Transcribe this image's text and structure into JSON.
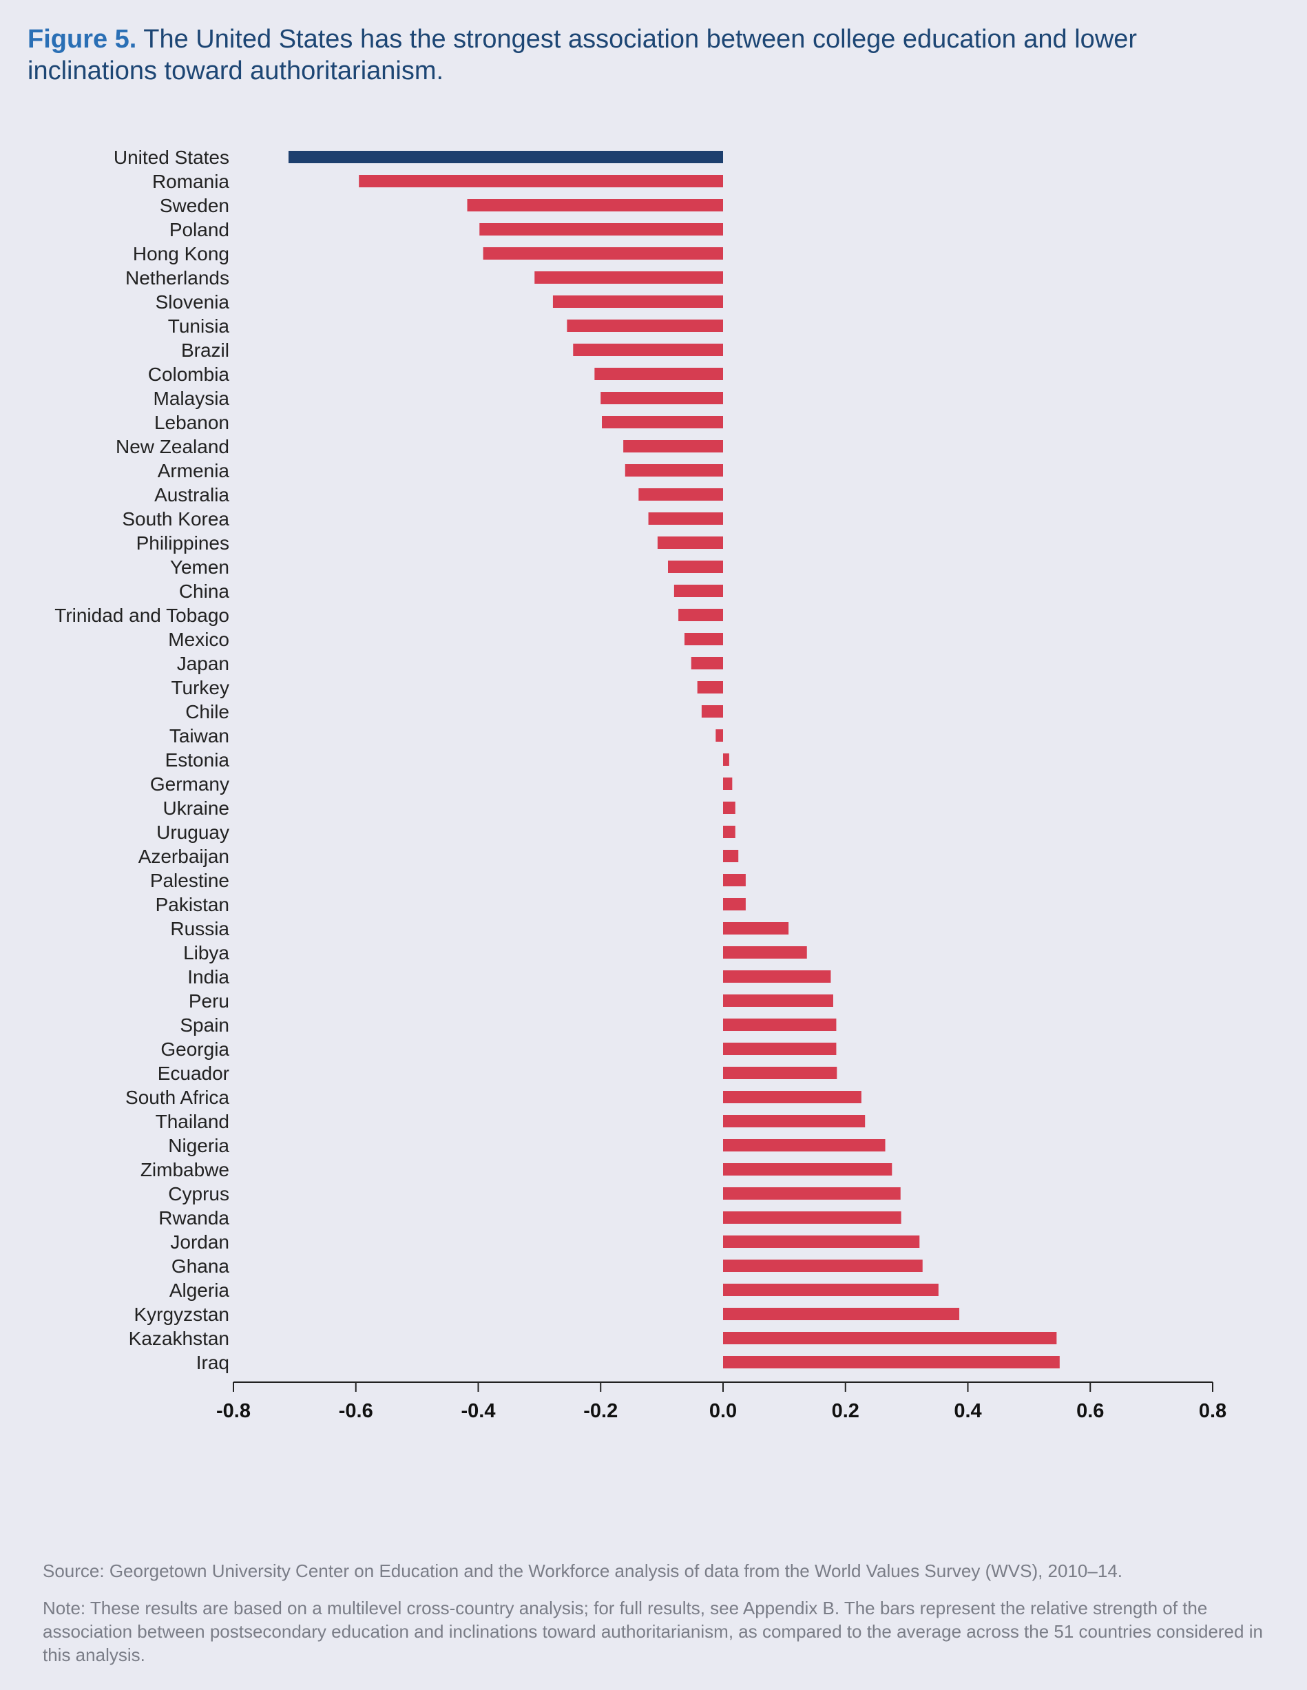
{
  "title": {
    "label": "Figure 5.",
    "text": "The United States has the strongest association between college education and lower inclinations toward authoritarianism."
  },
  "source": "Source: Georgetown University Center on Education and the Workforce analysis of data from the World Values Survey (WVS), 2010–14.",
  "note": "Note: These results are based on a multilevel cross-country analysis; for full results, see Appendix B. The bars represent the relative strength of the association between postsecondary education and inclinations toward authoritarianism, as compared to the average across the 51 countries considered in this analysis.",
  "colors": {
    "highlight": "#1d3f6e",
    "bar": "#d63d51",
    "axis": "#222222",
    "background": "#e9eaf2"
  },
  "chart_data": {
    "type": "bar",
    "orientation": "horizontal",
    "title": "",
    "xlabel": "",
    "ylabel": "",
    "xlim": [
      -0.8,
      0.8
    ],
    "xticks": [
      "-0.8",
      "-0.6",
      "-0.4",
      "-0.2",
      "0.0",
      "0.2",
      "0.4",
      "0.6",
      "0.8"
    ],
    "grid": false,
    "legend": "none",
    "highlight_category": "United States",
    "categories": [
      "United States",
      "Romania",
      "Sweden",
      "Poland",
      "Hong Kong",
      "Netherlands",
      "Slovenia",
      "Tunisia",
      "Brazil",
      "Colombia",
      "Malaysia",
      "Lebanon",
      "New Zealand",
      "Armenia",
      "Australia",
      "South Korea",
      "Philippines",
      "Yemen",
      "China",
      "Trinidad and Tobago",
      "Mexico",
      "Japan",
      "Turkey",
      "Chile",
      "Taiwan",
      "Estonia",
      "Germany",
      "Ukraine",
      "Uruguay",
      "Azerbaijan",
      "Palestine",
      "Pakistan",
      "Russia",
      "Libya",
      "India",
      "Peru",
      "Spain",
      "Georgia",
      "Ecuador",
      "South Africa",
      "Thailand",
      "Nigeria",
      "Zimbabwe",
      "Cyprus",
      "Rwanda",
      "Jordan",
      "Ghana",
      "Algeria",
      "Kyrgyzstan",
      "Kazakhstan",
      "Iraq"
    ],
    "values": [
      -0.71,
      -0.595,
      -0.418,
      -0.398,
      -0.392,
      -0.308,
      -0.278,
      -0.255,
      -0.245,
      -0.21,
      -0.2,
      -0.198,
      -0.163,
      -0.16,
      -0.138,
      -0.122,
      -0.107,
      -0.09,
      -0.08,
      -0.073,
      -0.063,
      -0.052,
      -0.042,
      -0.035,
      -0.012,
      0.01,
      0.015,
      0.02,
      0.02,
      0.025,
      0.037,
      0.037,
      0.107,
      0.137,
      0.176,
      0.18,
      0.185,
      0.185,
      0.186,
      0.226,
      0.232,
      0.265,
      0.276,
      0.29,
      0.291,
      0.321,
      0.326,
      0.352,
      0.386,
      0.545,
      0.55
    ]
  }
}
